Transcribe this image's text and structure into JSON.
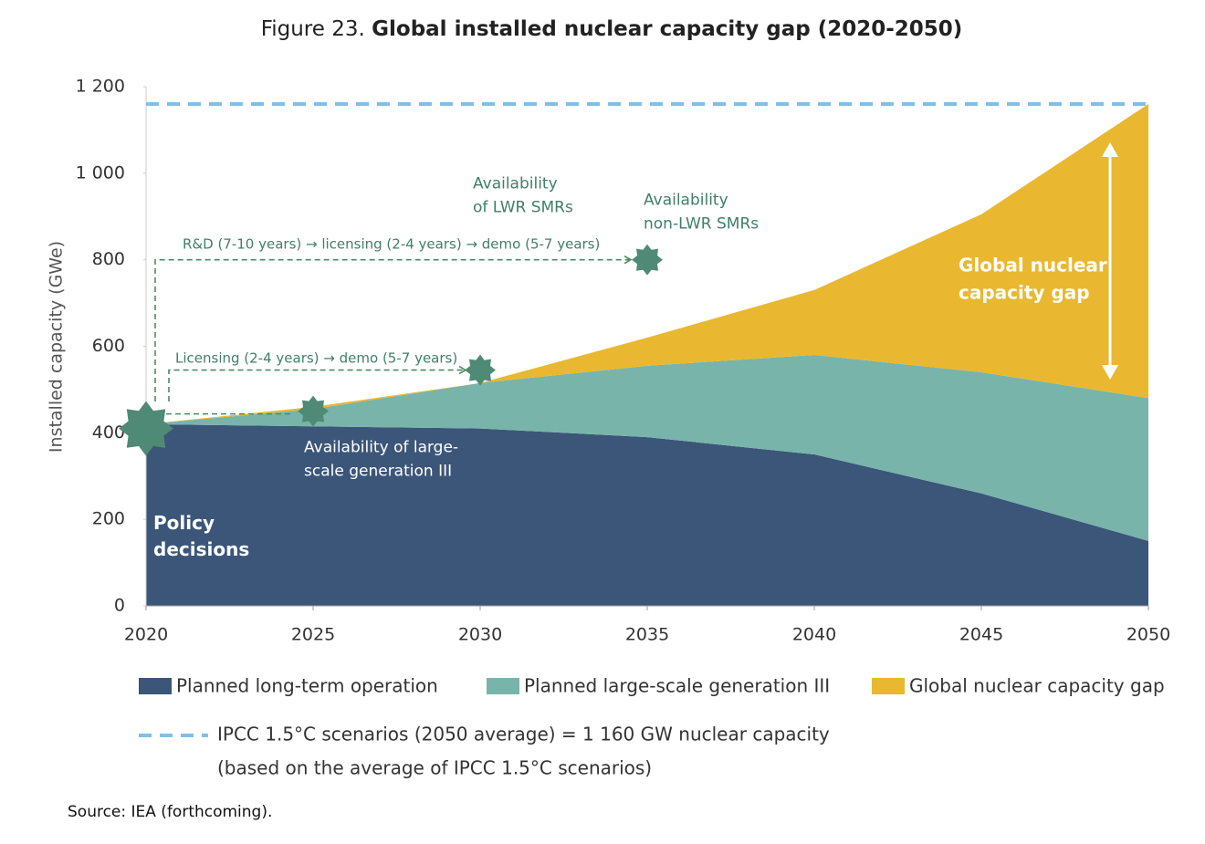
{
  "chart_data": {
    "type": "stacked_area",
    "title_prefix": "Figure 23.",
    "title": "Global installed nuclear capacity gap (2020-2050)",
    "y_label": "Installed capacity (GWe)",
    "x": [
      2020,
      2025,
      2030,
      2035,
      2040,
      2045,
      2050
    ],
    "xlim": [
      2020,
      2050
    ],
    "xticks": [
      2020,
      2025,
      2030,
      2035,
      2040,
      2045,
      2050
    ],
    "ylim": [
      0,
      1200
    ],
    "yticks": [
      0,
      200,
      400,
      600,
      800,
      {
        "value": 1000,
        "label": "1 000"
      },
      {
        "value": 1200,
        "label": "1 200"
      }
    ],
    "series": [
      {
        "name": "Planned long-term operation",
        "color": "#3b5678",
        "values": [
          420,
          415,
          410,
          390,
          350,
          260,
          150
        ]
      },
      {
        "name": "Planned large-scale generation III",
        "color": "#78b4aa",
        "values": [
          0,
          40,
          105,
          165,
          230,
          280,
          330
        ]
      },
      {
        "name": "Global nuclear capacity gap",
        "color": "#e9b830",
        "values": [
          0,
          5,
          0,
          65,
          150,
          365,
          680
        ]
      }
    ],
    "reference_line": {
      "value": 1160,
      "color": "#7ec0e8",
      "label_lines": [
        "IPCC 1.5°C scenarios (2050 average) = 1 160 GW nuclear capacity",
        "(based on the average of IPCC 1.5°C scenarios)"
      ]
    },
    "milestones": [
      {
        "x": 2020,
        "y": 410,
        "lines": [
          "Policy",
          "decisions"
        ]
      },
      {
        "x": 2025,
        "y": 450,
        "lines": [
          "Availability of large-",
          "scale generation III"
        ]
      },
      {
        "x": 2030,
        "y": 545,
        "lines": [
          "Availability",
          "of LWR SMRs"
        ]
      },
      {
        "x": 2035,
        "y": 800,
        "lines": [
          "Availability",
          "non-LWR SMRs"
        ]
      }
    ],
    "pathways": [
      "R&D (7-10 years) → licensing (2-4 years) → demo (5-7 years)",
      "Licensing (2-4 years) → demo (5-7 years)"
    ],
    "gap_label_lines": [
      "Global nuclear",
      "capacity gap"
    ],
    "source": "Source: IEA (forthcoming)."
  }
}
